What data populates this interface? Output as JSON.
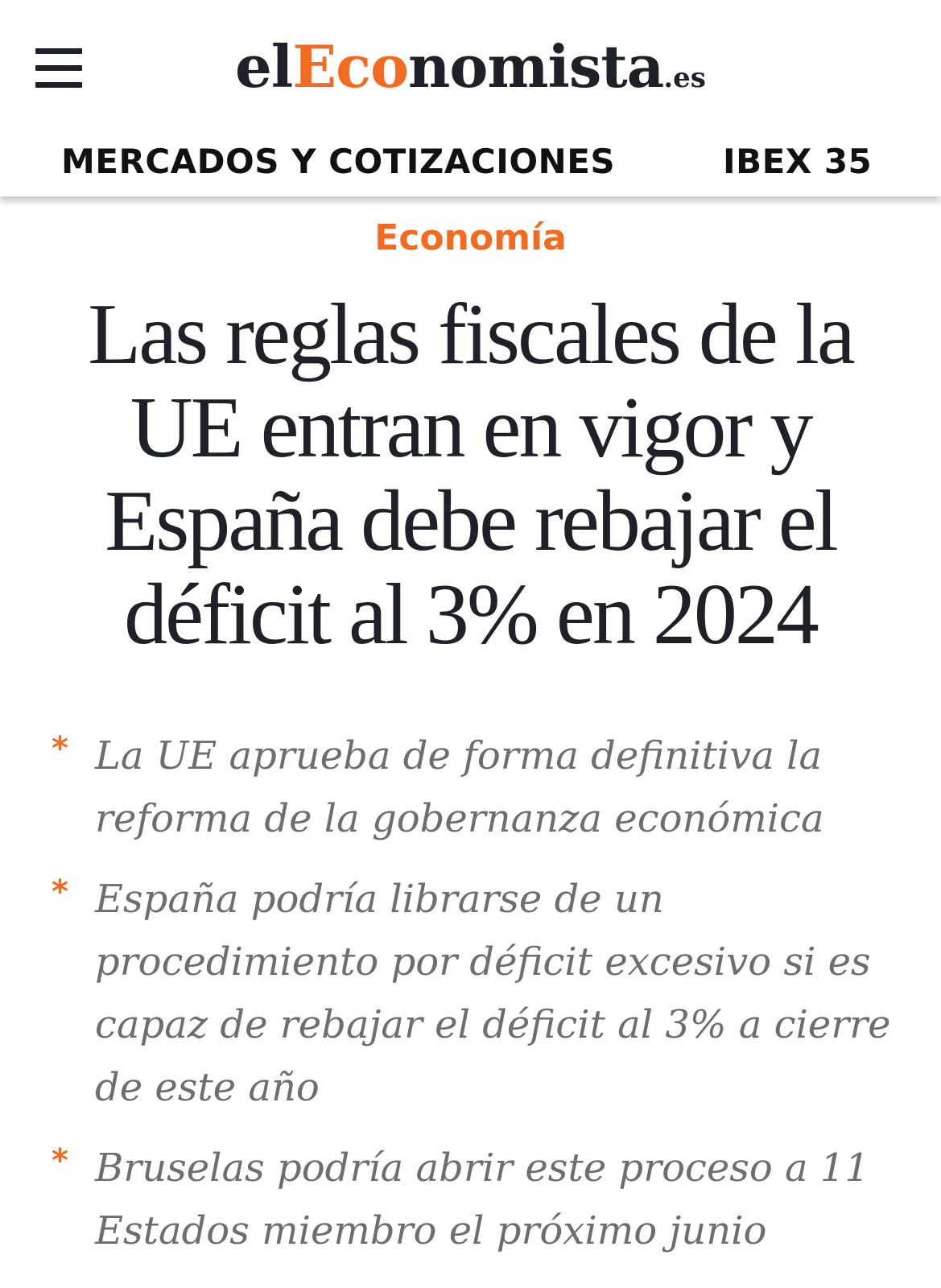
{
  "header": {
    "logo": {
      "part1": "el",
      "part2": "Eco",
      "part3": "nomista",
      "tld": ".es"
    },
    "nav": {
      "markets_label": "MERCADOS Y COTIZACIONES",
      "ibex_label": "IBEX 35"
    },
    "menu_icon": "hamburger-menu-icon"
  },
  "article": {
    "section": "Economía",
    "headline": "Las reglas fiscales de la UE entran en vigor y España debe rebajar el déficit al 3% en 2024",
    "bullets": [
      "La UE aprueba de forma definitiva la reforma de la gobernanza económica",
      "España podría librarse de un procedimiento por déficit excesivo si es capaz de rebajar el déficit al 3% a cierre de este año",
      "Bruselas podría abrir este proceso a 11 Estados miembro el próximo junio"
    ],
    "bullet_marker": "*"
  },
  "colors": {
    "accent": "#f26b21",
    "text": "#1f2128",
    "subtext": "#6e6e6e"
  }
}
